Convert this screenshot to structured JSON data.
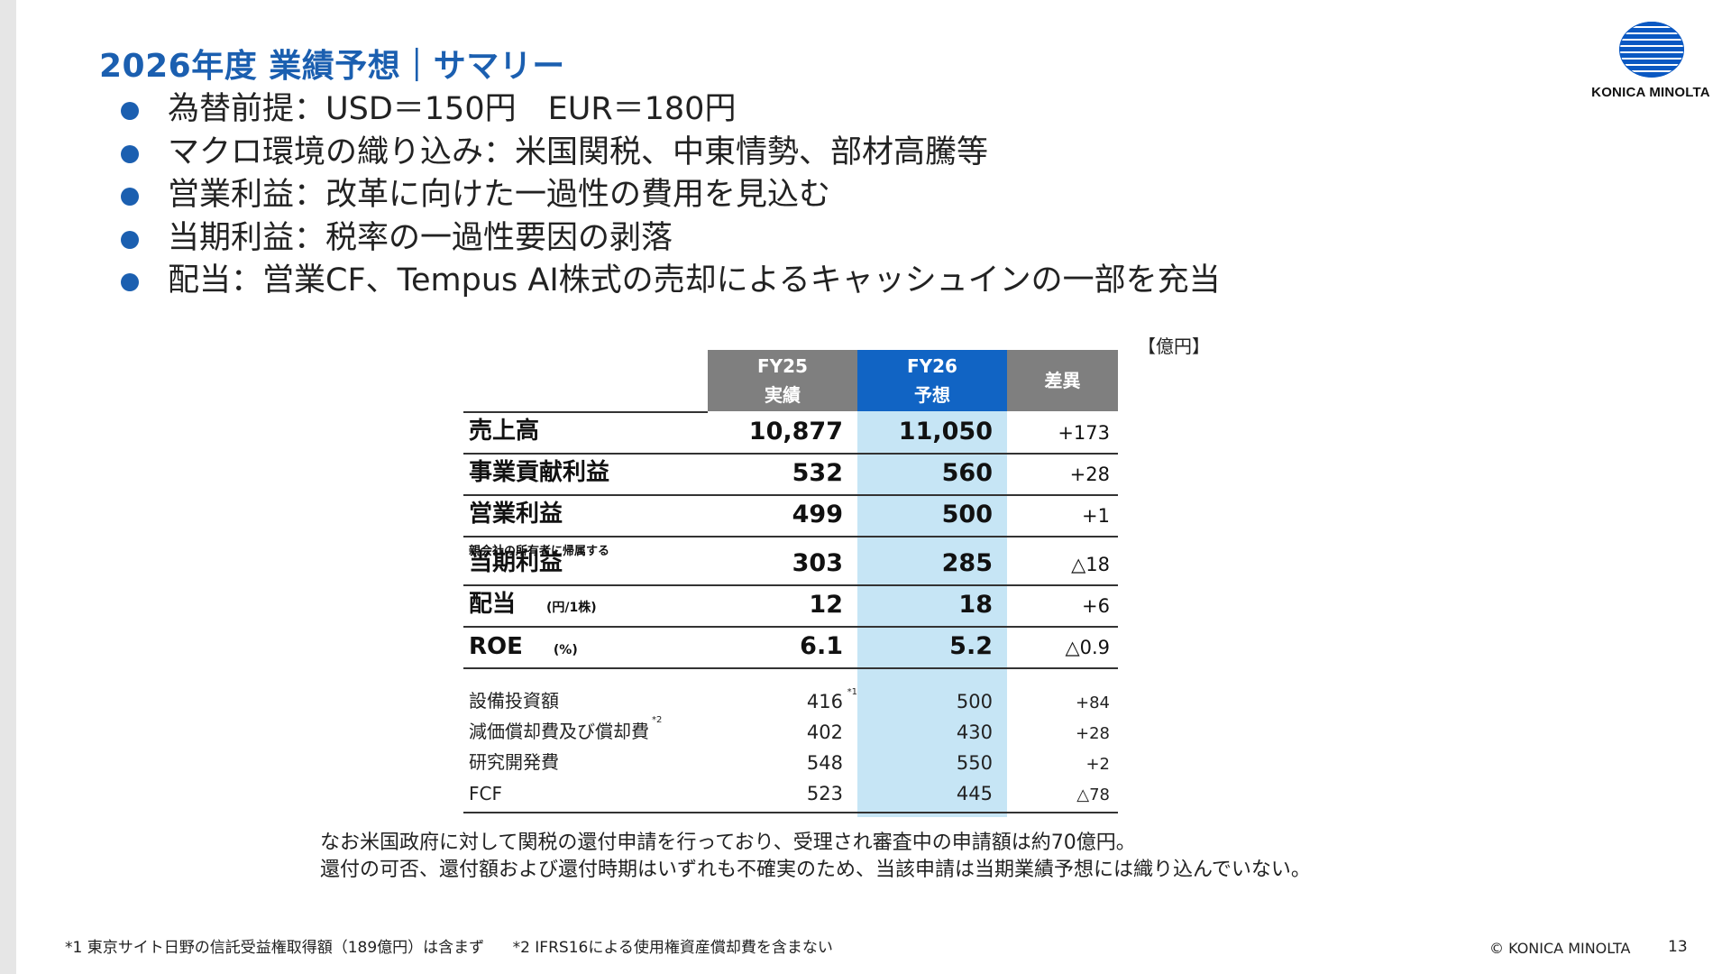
{
  "title": "2026年度 業績予想｜サマリー",
  "logo": {
    "text": "KONICA MINOLTA"
  },
  "bullets": [
    "為替前提：USD＝150円　EUR＝180円",
    "マクロ環境の織り込み：米国関税、中東情勢、部材高騰等",
    "営業利益：改革に向けた一過性の費用を見込む",
    "当期利益：税率の一過性要因の剥落",
    "配当：営業CF、Tempus AI株式の売却によるキャッシュインの一部を充当"
  ],
  "accent_color": "#1b5fb0",
  "unit": "【億円】",
  "table": {
    "headers": {
      "fy25": [
        "FY25",
        "実績"
      ],
      "fy26": [
        "FY26",
        "予想"
      ],
      "diff": "差異"
    },
    "main_rows": [
      {
        "label": "売上高",
        "sub": "",
        "note": "",
        "fy25": "10,877",
        "fy26": "11,050",
        "diff": "+173"
      },
      {
        "label": "事業貢献利益",
        "sub": "",
        "note": "",
        "fy25": "532",
        "fy26": "560",
        "diff": "+28"
      },
      {
        "label": "営業利益",
        "sub": "",
        "note": "",
        "fy25": "499",
        "fy26": "500",
        "diff": "+1"
      },
      {
        "label": "当期利益",
        "sub": "",
        "note": "親会社の所有者に帰属する",
        "fy25": "303",
        "fy26": "285",
        "diff": "△18"
      },
      {
        "label": "配当",
        "sub": "(円/1株)",
        "note": "",
        "fy25": "12",
        "fy26": "18",
        "diff": "+6"
      },
      {
        "label": "ROE",
        "sub": "(%)",
        "note": "",
        "fy25": "6.1",
        "fy26": "5.2",
        "diff": "△0.9"
      }
    ],
    "sub_rows": [
      {
        "label": "設備投資額",
        "label_sup": "",
        "fy25": "416",
        "fy25_sup": "*1",
        "fy26": "500",
        "diff": "+84"
      },
      {
        "label": "減価償却費及び償却費",
        "label_sup": "*2",
        "fy25": "402",
        "fy25_sup": "",
        "fy26": "430",
        "diff": "+28"
      },
      {
        "label": "研究開発費",
        "label_sup": "",
        "fy25": "548",
        "fy25_sup": "",
        "fy26": "550",
        "diff": "+2"
      },
      {
        "label": "FCF",
        "label_sup": "",
        "fy25": "523",
        "fy25_sup": "",
        "fy26": "445",
        "diff": "△78"
      }
    ]
  },
  "remarks": [
    "なお米国政府に対して関税の還付申請を行っており、受理され審査中の申請額は約70億円。",
    "還付の可否、還付額および還付時期はいずれも不確実のため、当該申請は当期業績予想には織り込んでいない。"
  ],
  "footnotes": [
    "*1 東京サイト日野の信託受益権取得額（189億円）は含まず",
    "*2 IFRS16による使用権資産償却費を含まない"
  ],
  "copyright": "© KONICA MINOLTA",
  "page_number": "13"
}
